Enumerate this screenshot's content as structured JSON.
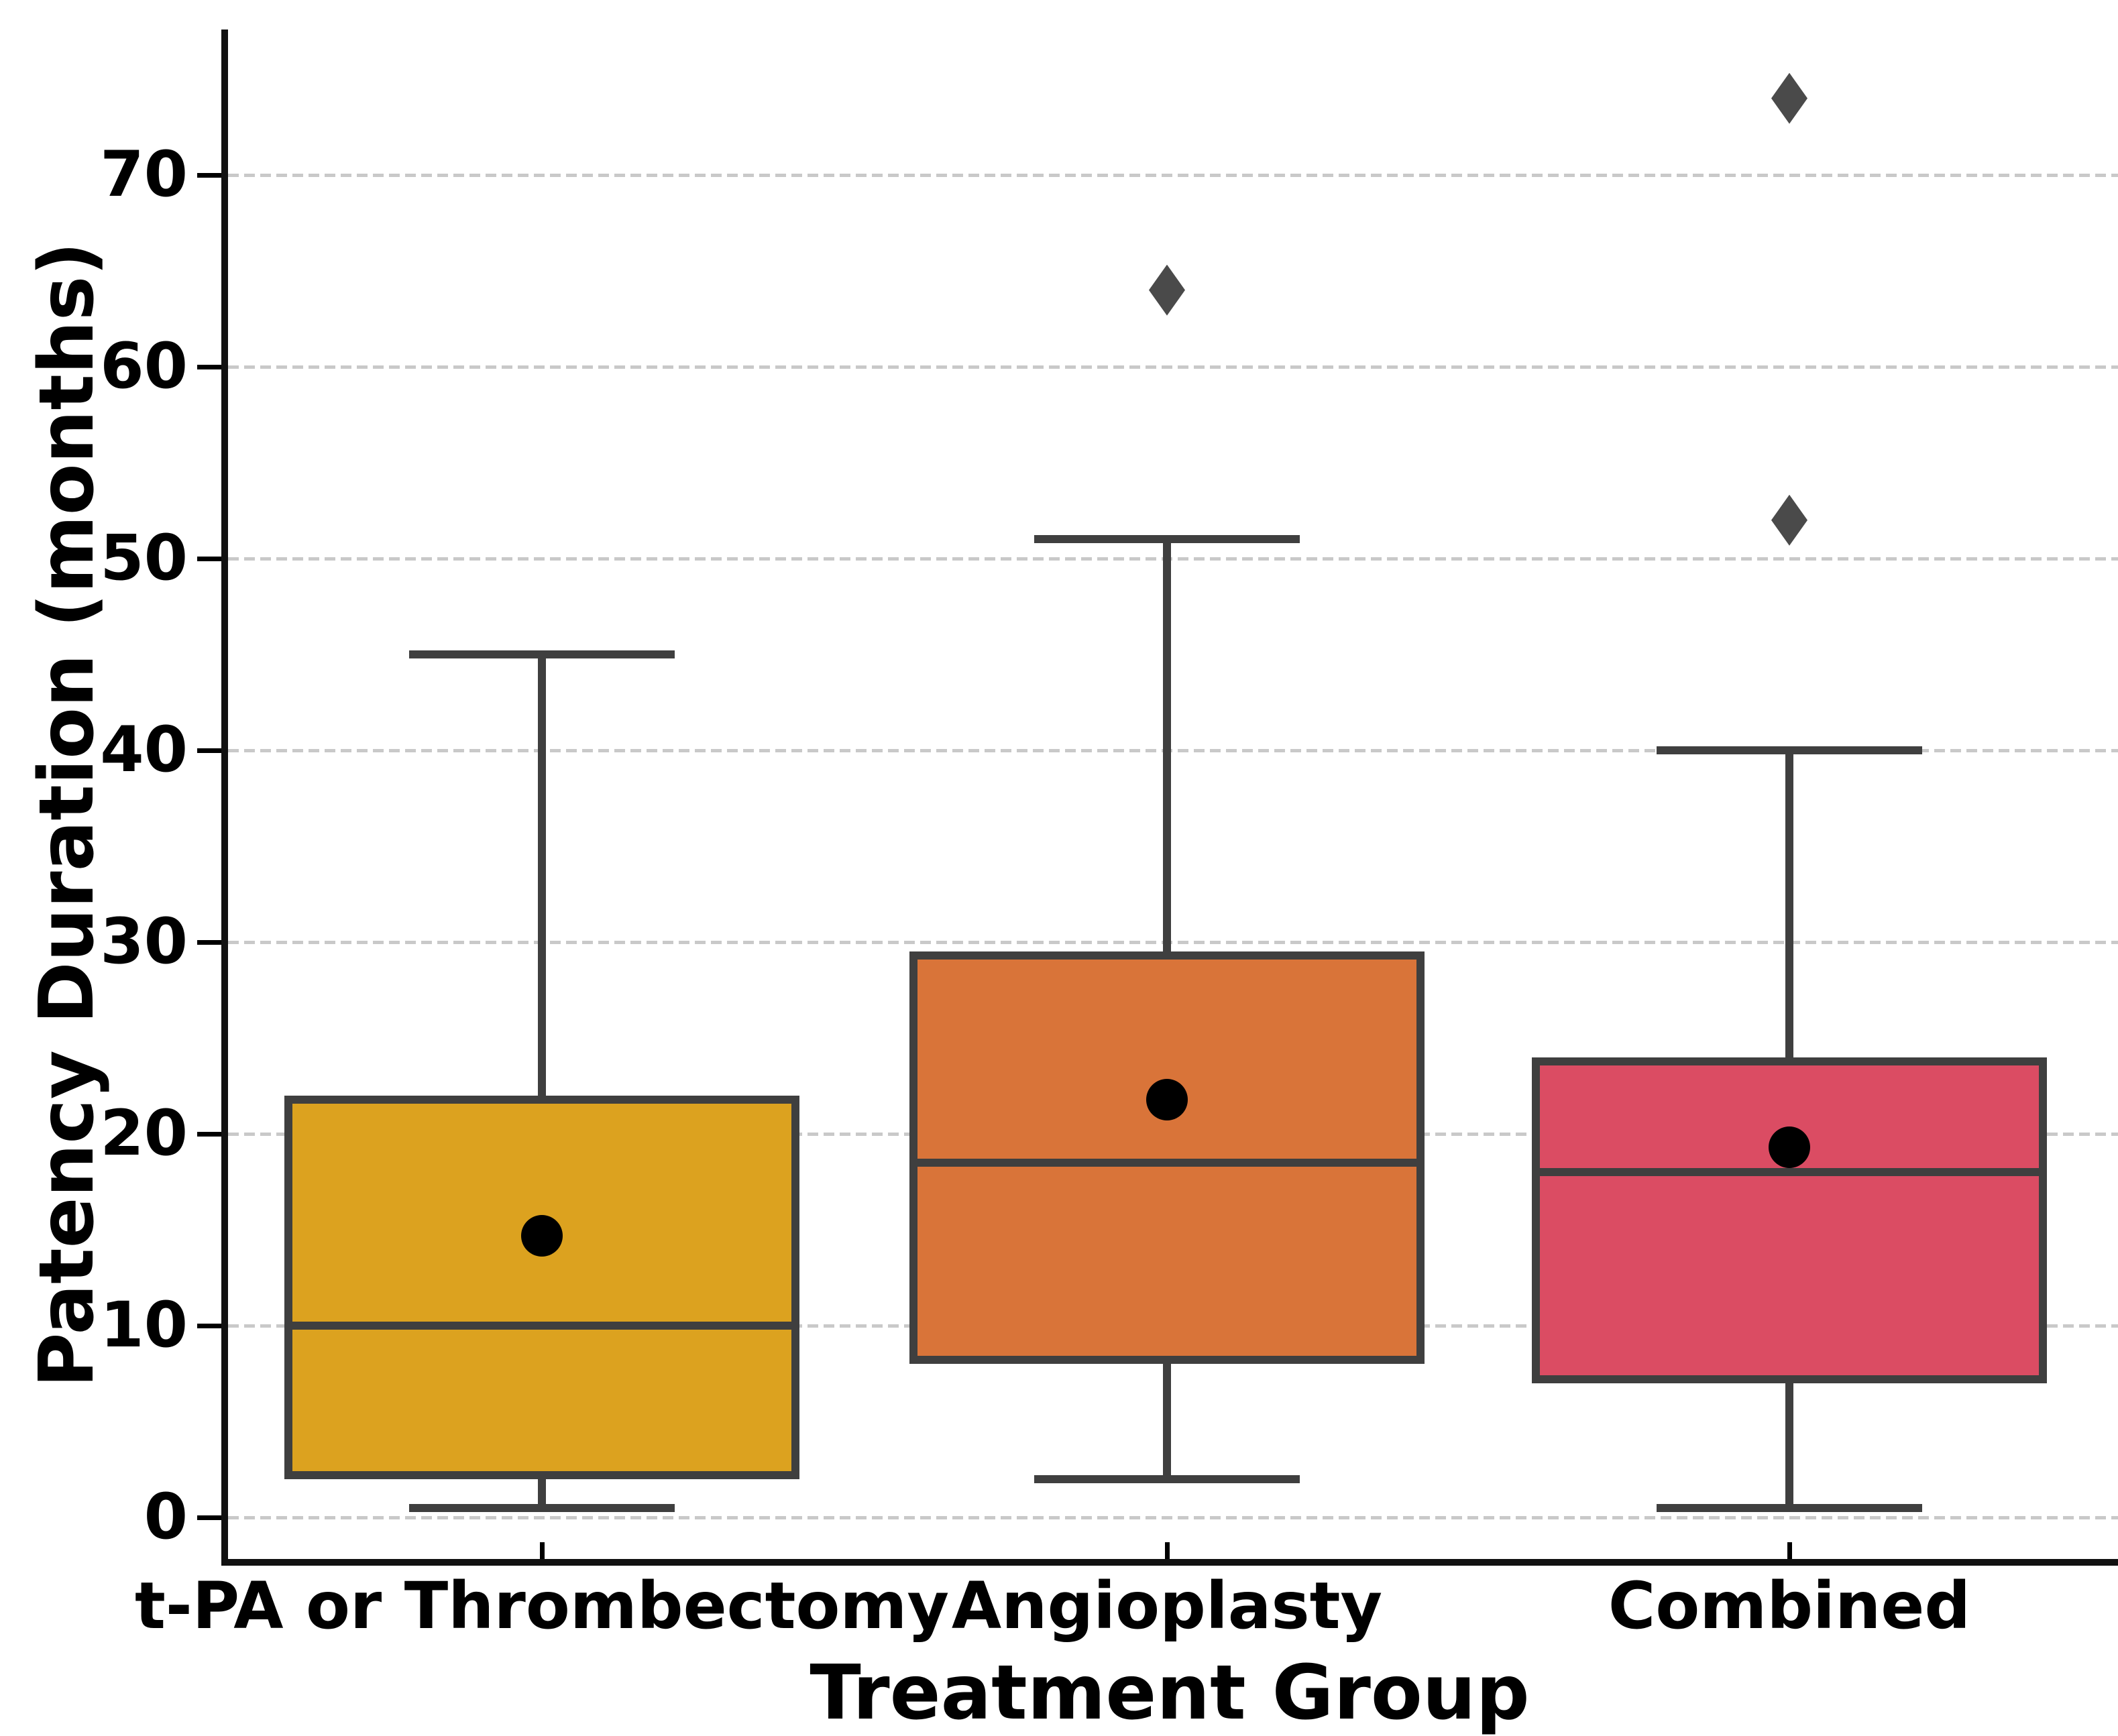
{
  "figure": {
    "background": "#ffffff"
  },
  "chart_data": {
    "type": "box",
    "title": "",
    "xlabel": "Treatment Group",
    "ylabel": "Patency Duration (months)",
    "categories": [
      "t-PA or Thrombectomy",
      "Angioplasty",
      "Combined"
    ],
    "yticks": [
      0,
      10,
      20,
      30,
      40,
      50,
      60,
      70
    ],
    "ylim": [
      -2.2,
      78
    ],
    "grid": "horizontal-dashed",
    "legend": "none",
    "series": [
      {
        "name": "t-PA or Thrombectomy",
        "color": "#DCA21F",
        "whisker_low": 0.5,
        "q1": 2,
        "median": 10,
        "q3": 22,
        "whisker_high": 45,
        "mean": 14.7,
        "outliers": []
      },
      {
        "name": "Angioplasty",
        "color": "#D97439",
        "whisker_low": 2,
        "q1": 8,
        "median": 18.5,
        "q3": 29.5,
        "whisker_high": 51,
        "mean": 21.8,
        "outliers": [
          64
        ]
      },
      {
        "name": "Combined",
        "color": "#DB4C63",
        "whisker_low": 0.5,
        "q1": 7,
        "median": 18,
        "q3": 24,
        "whisker_high": 40,
        "mean": 19.3,
        "outliers": [
          52,
          74
        ]
      }
    ],
    "style": {
      "box_edge": "#3F3F3F",
      "median_line": "#3F3F3F",
      "mean_marker": "#000000",
      "outlier_marker": "#4A4A4A",
      "gridline": "#C9C9C9",
      "axis": "#000000"
    }
  }
}
